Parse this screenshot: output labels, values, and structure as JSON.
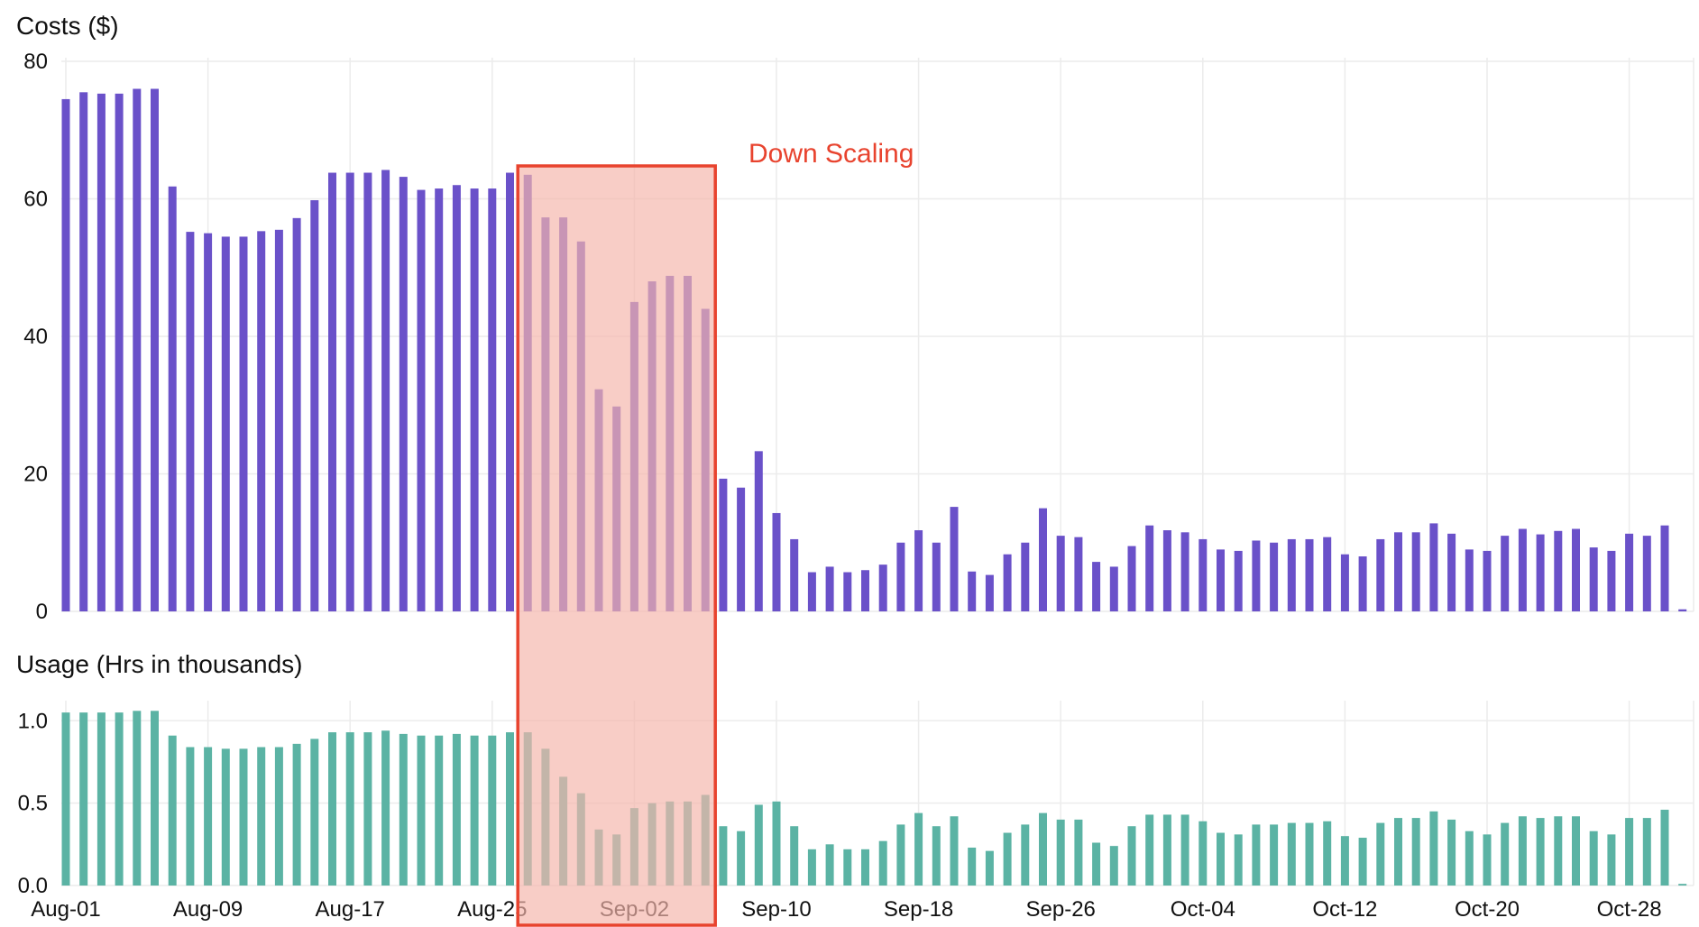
{
  "chart_data": {
    "type": "bar",
    "dates": [
      "Aug-01",
      "Aug-02",
      "Aug-03",
      "Aug-04",
      "Aug-05",
      "Aug-06",
      "Aug-07",
      "Aug-08",
      "Aug-09",
      "Aug-10",
      "Aug-11",
      "Aug-12",
      "Aug-13",
      "Aug-14",
      "Aug-15",
      "Aug-16",
      "Aug-17",
      "Aug-18",
      "Aug-19",
      "Aug-20",
      "Aug-21",
      "Aug-22",
      "Aug-23",
      "Aug-24",
      "Aug-25",
      "Aug-26",
      "Aug-27",
      "Aug-28",
      "Aug-29",
      "Aug-30",
      "Aug-31",
      "Sep-01",
      "Sep-02",
      "Sep-03",
      "Sep-04",
      "Sep-05",
      "Sep-06",
      "Sep-07",
      "Sep-08",
      "Sep-09",
      "Sep-10",
      "Sep-11",
      "Sep-12",
      "Sep-13",
      "Sep-14",
      "Sep-15",
      "Sep-16",
      "Sep-17",
      "Sep-18",
      "Sep-19",
      "Sep-20",
      "Sep-21",
      "Sep-22",
      "Sep-23",
      "Sep-24",
      "Sep-25",
      "Sep-26",
      "Sep-27",
      "Sep-28",
      "Sep-29",
      "Sep-30",
      "Oct-01",
      "Oct-02",
      "Oct-03",
      "Oct-04",
      "Oct-05",
      "Oct-06",
      "Oct-07",
      "Oct-08",
      "Oct-09",
      "Oct-10",
      "Oct-11",
      "Oct-12",
      "Oct-13",
      "Oct-14",
      "Oct-15",
      "Oct-16",
      "Oct-17",
      "Oct-18",
      "Oct-19",
      "Oct-20",
      "Oct-21",
      "Oct-22",
      "Oct-23",
      "Oct-24",
      "Oct-25",
      "Oct-26",
      "Oct-27",
      "Oct-28",
      "Oct-29",
      "Oct-30",
      "Oct-31"
    ],
    "x_tick_labels": [
      "Aug-01",
      "Aug-09",
      "Aug-17",
      "Aug-25",
      "Sep-02",
      "Sep-10",
      "Sep-18",
      "Sep-26",
      "Oct-04",
      "Oct-12",
      "Oct-20",
      "Oct-28"
    ],
    "x_tick_dates": [
      "Aug-01",
      "Aug-09",
      "Aug-17",
      "Aug-25",
      "Sep-02",
      "Sep-10",
      "Sep-18",
      "Sep-26",
      "Oct-04",
      "Oct-12",
      "Oct-20",
      "Oct-28"
    ],
    "panels": [
      {
        "id": "costs",
        "title": "Costs ($)",
        "color": "#6a51c9",
        "ylim": [
          0,
          80
        ],
        "y_ticks": [
          0,
          20,
          40,
          60,
          80
        ],
        "y_tick_labels": [
          "0",
          "20",
          "40",
          "60",
          "80"
        ],
        "values": [
          74.5,
          75.5,
          75.3,
          75.3,
          76,
          76,
          61.8,
          55.2,
          55,
          54.5,
          54.5,
          55.3,
          55.5,
          57.2,
          59.8,
          63.8,
          63.8,
          63.8,
          64.2,
          63.2,
          61.3,
          61.5,
          62,
          61.5,
          61.5,
          63.8,
          63.5,
          57.3,
          57.3,
          53.8,
          32.3,
          29.8,
          45,
          48,
          48.8,
          48.8,
          44,
          19.3,
          18,
          23.3,
          14.3,
          10.5,
          5.7,
          6.5,
          5.7,
          6,
          6.8,
          10,
          11.8,
          10,
          15.2,
          5.8,
          5.3,
          8.3,
          10,
          15,
          11,
          10.8,
          7.2,
          6.5,
          9.5,
          12.5,
          11.8,
          11.5,
          10.5,
          9,
          8.8,
          10.3,
          10,
          10.5,
          10.5,
          10.8,
          8.3,
          8,
          10.5,
          11.5,
          11.5,
          12.8,
          11.3,
          9,
          8.8,
          11,
          12,
          11.2,
          11.7,
          12,
          9.3,
          8.8,
          11.3,
          11,
          12.5,
          0.3
        ]
      },
      {
        "id": "usage",
        "title": "Usage (Hrs in thousands)",
        "color": "#5bb3a4",
        "ylim": [
          0,
          1.1
        ],
        "y_ticks": [
          0,
          0.5,
          1.0
        ],
        "y_tick_labels": [
          "0.0",
          "0.5",
          "1.0"
        ],
        "values": [
          1.05,
          1.05,
          1.05,
          1.05,
          1.06,
          1.06,
          0.91,
          0.84,
          0.84,
          0.83,
          0.83,
          0.84,
          0.84,
          0.86,
          0.89,
          0.93,
          0.93,
          0.93,
          0.94,
          0.92,
          0.91,
          0.91,
          0.92,
          0.91,
          0.91,
          0.93,
          0.93,
          0.83,
          0.66,
          0.56,
          0.34,
          0.31,
          0.47,
          0.5,
          0.51,
          0.51,
          0.55,
          0.36,
          0.33,
          0.49,
          0.51,
          0.36,
          0.22,
          0.25,
          0.22,
          0.22,
          0.27,
          0.37,
          0.44,
          0.36,
          0.42,
          0.23,
          0.21,
          0.32,
          0.37,
          0.44,
          0.4,
          0.4,
          0.26,
          0.24,
          0.36,
          0.43,
          0.43,
          0.43,
          0.39,
          0.32,
          0.31,
          0.37,
          0.37,
          0.38,
          0.38,
          0.39,
          0.3,
          0.29,
          0.38,
          0.41,
          0.41,
          0.45,
          0.4,
          0.33,
          0.31,
          0.38,
          0.42,
          0.41,
          0.42,
          0.42,
          0.33,
          0.31,
          0.41,
          0.41,
          0.46,
          0.01
        ]
      }
    ],
    "annotation": {
      "label": "Down Scaling",
      "start_date": "Aug-27",
      "end_date": "Sep-06",
      "fill_color": "#f4b5ab",
      "stroke_color": "#e8432e",
      "text_color": "#e8432e"
    }
  }
}
